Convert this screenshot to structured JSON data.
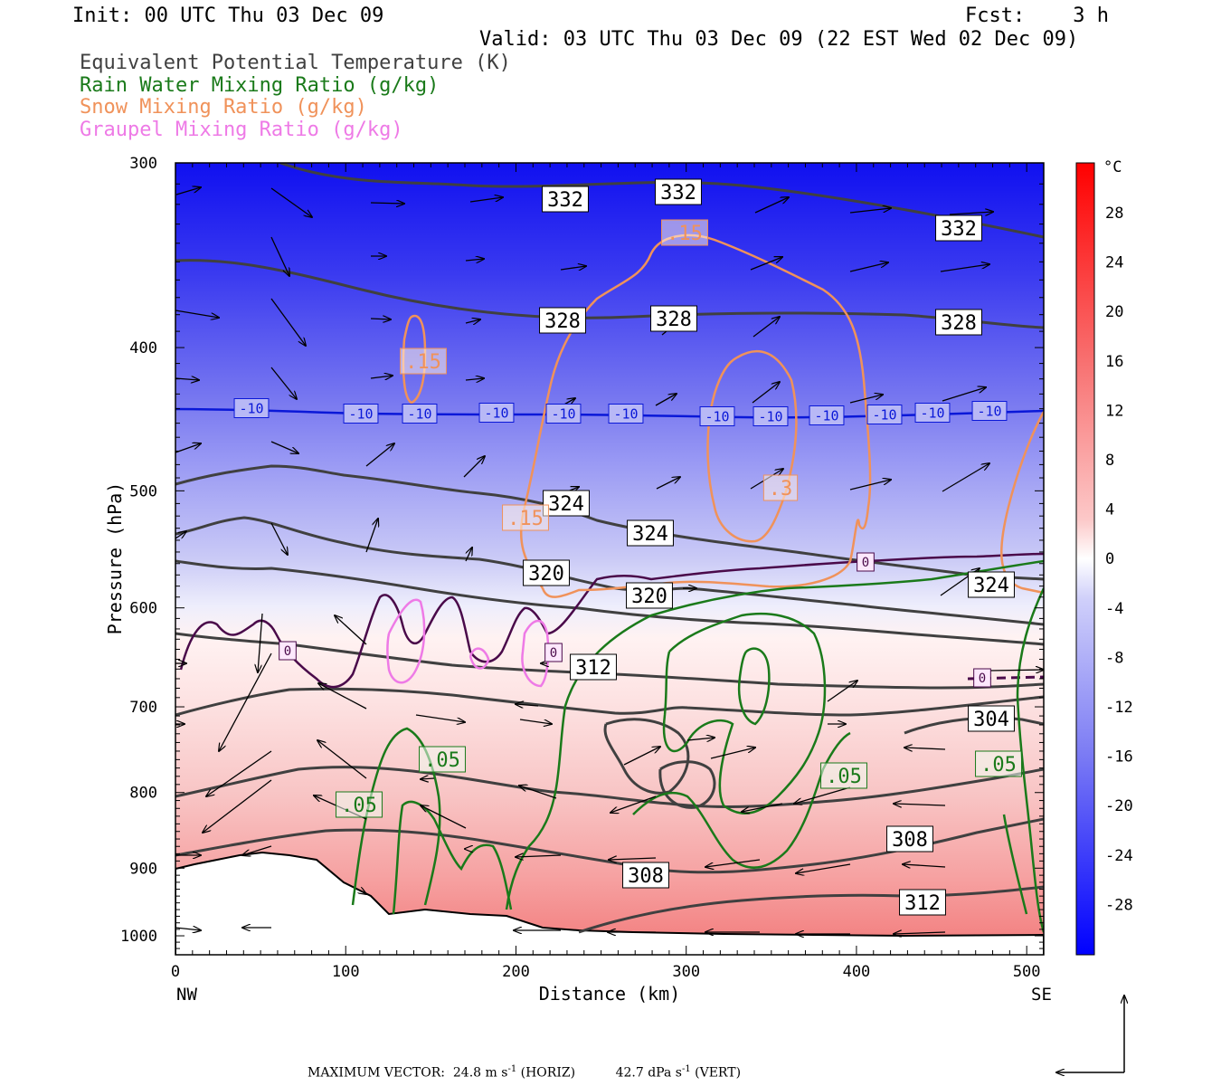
{
  "header": {
    "init": "Init: 00 UTC Thu 03 Dec 09",
    "fcst": "Fcst:    3 h",
    "valid": "Valid: 03 UTC Thu 03 Dec 09 (22 EST Wed 02 Dec 09)"
  },
  "legend": {
    "theta_e": "Equivalent Potential Temperature (K)",
    "rain": "Rain Water Mixing Ratio (g/kg)",
    "snow": "Snow Mixing Ratio (g/kg)",
    "graupel": "Graupel Mixing Ratio (g/kg)"
  },
  "colors": {
    "theta_e": "#404040",
    "rain": "#1a7a1a",
    "snow": "#f0925a",
    "graupel": "#ee7ae6",
    "zero_isotherm": "#4a0a4a",
    "minus10_isotherm": "#0a18d8"
  },
  "chart_data": {
    "type": "cross-section",
    "xlabel": "Distance (km)",
    "ylabel": "Pressure (hPa)",
    "x_left_label": "NW",
    "x_right_label": "SE",
    "xlim": [
      0,
      510
    ],
    "ylim": [
      1030,
      300
    ],
    "y_log": true,
    "x_ticks": [
      "0",
      "100",
      "200",
      "300",
      "400",
      "500"
    ],
    "y_ticks": [
      "300",
      "400",
      "500",
      "600",
      "700",
      "800",
      "900",
      "1000"
    ],
    "colorbar": {
      "unit": "°C",
      "labels": [
        "28",
        "24",
        "20",
        "16",
        "12",
        "8",
        "4",
        "0",
        "-4",
        "-8",
        "-12",
        "-16",
        "-20",
        "-24",
        "-28"
      ]
    },
    "theta_e_labels": [
      "332",
      "332",
      "332",
      "328",
      "328",
      "328",
      "324",
      "324",
      "324",
      "320",
      "320",
      "312",
      "304",
      "308",
      "308",
      "312"
    ],
    "isotherm_minus10_labels": [
      "-10",
      "-10",
      "-10",
      "-10",
      "-10",
      "-10",
      "-10",
      "-10",
      "-10",
      "-10",
      "-10",
      "-10"
    ],
    "isotherm_zero_labels": [
      "0",
      "0",
      "0",
      "0"
    ],
    "snow_labels": [
      ".15",
      ".15",
      ".15",
      ".3"
    ],
    "rain_labels": [
      ".05",
      ".05",
      ".05",
      ".05"
    ]
  },
  "footer": {
    "max_vector_label": "MAXIMUM VECTOR:",
    "horiz_value": "24.8 m s",
    "horiz_exp": "-1",
    "horiz_label": "(HORIZ)",
    "vert_value": "42.7 dPa s",
    "vert_exp": "-1",
    "vert_label": "(VERT)"
  }
}
